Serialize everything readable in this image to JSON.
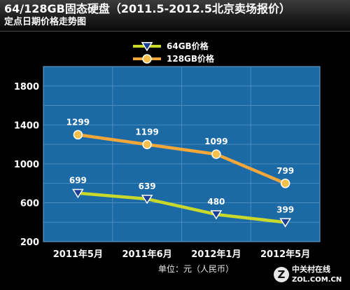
{
  "header": {
    "title": "64/128GB固态硬盘（2011.5-2012.5北京卖场报价）",
    "subtitle": "定点日期价格走势图"
  },
  "unit_label": "单位：元（人民币）",
  "watermark": {
    "brand": "中关村在线",
    "domain": "ZOL.COM.CN"
  },
  "colors": {
    "plot_bg": "#1b6aa6",
    "series_64": "#c9d92b",
    "series_128": "#f3a63a",
    "marker_64": "#1b3f94"
  },
  "chart_data": {
    "type": "line",
    "title": "64/128GB固态硬盘（2011.5-2012.5北京卖场报价）",
    "categories": [
      "2011年5月",
      "2011年6月",
      "2012年1月",
      "2012年5月"
    ],
    "ylim": [
      200,
      2000
    ],
    "yticks": [
      200,
      600,
      1000,
      1400,
      1800
    ],
    "grid": true,
    "legend": "top-center",
    "series": [
      {
        "name": "64GB价格",
        "values": [
          699,
          639,
          480,
          399
        ],
        "marker": "triangle-down-icon"
      },
      {
        "name": "128GB价格",
        "values": [
          1299,
          1199,
          1099,
          799
        ],
        "marker": "circle-icon"
      }
    ]
  }
}
